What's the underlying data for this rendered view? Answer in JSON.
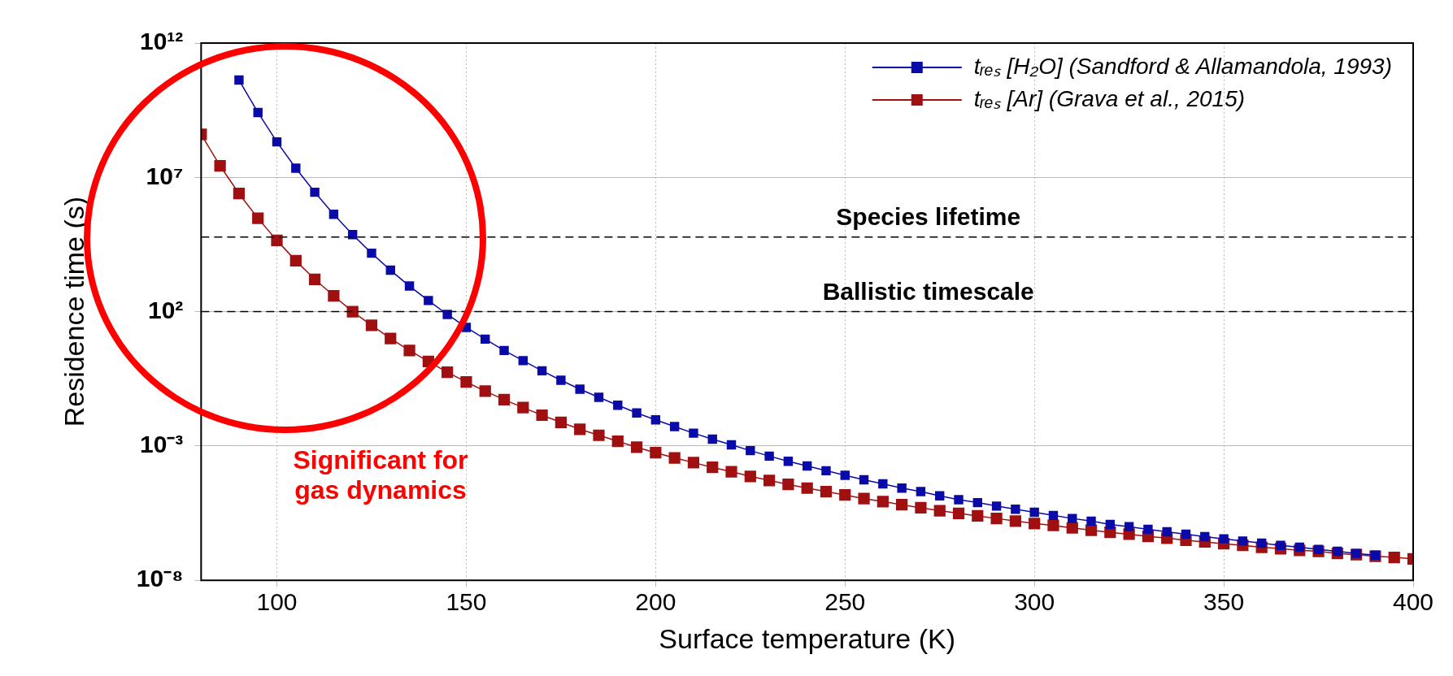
{
  "chart_data": {
    "type": "line",
    "xlabel": "Surface temperature (K)",
    "ylabel": "Residence time (s)",
    "xlim": [
      80,
      400
    ],
    "xticks": [
      100,
      150,
      200,
      250,
      300,
      350,
      400
    ],
    "ylim": [
      1e-08,
      1000000000000.0
    ],
    "yticks": [
      {
        "value": 1e-08,
        "label": "10⁻⁸"
      },
      {
        "value": 0.001,
        "label": "10⁻³"
      },
      {
        "value": 100,
        "label": "10²"
      },
      {
        "value": 10000000.0,
        "label": "10⁷"
      },
      {
        "value": 1000000000000.0,
        "label": "10¹²"
      }
    ],
    "log": "y",
    "grid": true,
    "legend": "top right",
    "marker": "square",
    "line_style": "solid",
    "series": [
      {
        "name": "tᵣₑₛ [H₂O] (Sandford & Allamandola, 1993)",
        "color": "#0a0aa8",
        "x": [
          90,
          95,
          100,
          105,
          110,
          115,
          120,
          125,
          130,
          135,
          140,
          145,
          150,
          155,
          160,
          165,
          170,
          175,
          180,
          185,
          190,
          195,
          200,
          205,
          210,
          215,
          220,
          225,
          230,
          235,
          240,
          245,
          250,
          255,
          260,
          265,
          270,
          275,
          280,
          285,
          290,
          295,
          300,
          305,
          310,
          315,
          320,
          325,
          330,
          335,
          340,
          345,
          350,
          355,
          360,
          365,
          370,
          375,
          380,
          385,
          390
        ],
        "values": [
          42000000000.0,
          2600000000.0,
          210000000.0,
          22000000.0,
          2800000.0,
          420000.0,
          74000.0,
          15000.0,
          3500,
          900,
          260,
          79,
          26,
          9.5,
          3.6,
          1.5,
          0.63,
          0.28,
          0.13,
          0.065,
          0.033,
          0.017,
          0.0094,
          0.0053,
          0.003,
          0.0018,
          0.0011,
          0.00067,
          0.00042,
          0.00027,
          0.00018,
          0.00012,
          8.1e-05,
          5.5e-05,
          3.9e-05,
          2.7e-05,
          2e-05,
          1.4e-05,
          1e-05,
          7.8e-06,
          5.8e-06,
          4.4e-06,
          3.4e-06,
          2.6e-06,
          2e-06,
          1.6e-06,
          1.2e-06,
          9.9e-07,
          7.9e-07,
          6.4e-07,
          5.2e-07,
          4.2e-07,
          3.5e-07,
          2.9e-07,
          2.4e-07,
          2e-07,
          1.7e-07,
          1.4e-07,
          1.2e-07,
          1e-07,
          8.6e-08
        ]
      },
      {
        "name": "tᵣₑₛ [Ar] (Grava et al., 2015)",
        "color": "#a01010",
        "x": [
          80,
          85,
          90,
          95,
          100,
          105,
          110,
          115,
          120,
          125,
          130,
          135,
          140,
          145,
          150,
          155,
          160,
          165,
          170,
          175,
          180,
          185,
          190,
          195,
          200,
          205,
          210,
          215,
          220,
          225,
          230,
          235,
          240,
          245,
          250,
          255,
          260,
          265,
          270,
          275,
          280,
          285,
          290,
          295,
          300,
          305,
          310,
          315,
          320,
          325,
          330,
          335,
          340,
          345,
          350,
          355,
          360,
          365,
          370,
          375,
          380,
          385,
          390,
          395,
          400
        ],
        "values": [
          400000000.0,
          27000000.0,
          2500000.0,
          300000.0,
          45000.0,
          7900,
          1600,
          390,
          100,
          31,
          10,
          3.6,
          1.4,
          0.56,
          0.24,
          0.11,
          0.053,
          0.027,
          0.014,
          0.0076,
          0.0042,
          0.0025,
          0.0015,
          0.0009,
          0.00056,
          0.00036,
          0.00024,
          0.00016,
          0.00011,
          7.4e-05,
          5.2e-05,
          3.7e-05,
          2.7e-05,
          2e-05,
          1.5e-05,
          1.1e-05,
          8.5e-06,
          6.5e-06,
          5e-06,
          3.9e-06,
          3.1e-06,
          2.5e-06,
          2e-06,
          1.6e-06,
          1.3e-06,
          1.1e-06,
          8.9e-07,
          7.3e-07,
          6.1e-07,
          5.2e-07,
          4.3e-07,
          3.7e-07,
          3.1e-07,
          2.7e-07,
          2.3e-07,
          2e-07,
          1.7e-07,
          1.5e-07,
          1.3e-07,
          1.2e-07,
          1e-07,
          9e-08,
          7.9e-08,
          7.1e-08,
          6.3e-08
        ]
      }
    ],
    "ref_lines": [
      {
        "axis": "y",
        "value": 60000,
        "label": "Species lifetime",
        "color": "#000000",
        "line_style": "dashed"
      },
      {
        "axis": "y",
        "value": 100,
        "label": "Ballistic timescale",
        "color": "#000000",
        "line_style": "dashed"
      }
    ],
    "annotations": [
      "Significant for gas dynamics"
    ]
  }
}
